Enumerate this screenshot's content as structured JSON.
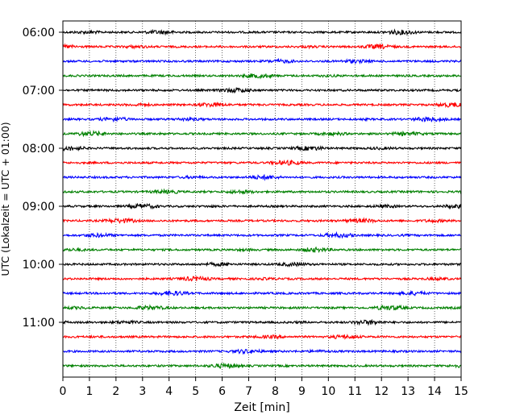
{
  "chart_data": {
    "type": "line",
    "subtype": "helicorder",
    "xlabel": "Zeit  [min]",
    "ylabel": "UTC (Lokalzeit = UTC + 01:00)",
    "xlim": [
      0,
      15
    ],
    "x_ticks": [
      0,
      1,
      2,
      3,
      4,
      5,
      6,
      7,
      8,
      9,
      10,
      11,
      12,
      13,
      14,
      15
    ],
    "x_tick_labels": [
      "0",
      "1",
      "2",
      "3",
      "4",
      "5",
      "6",
      "7",
      "8",
      "9",
      "10",
      "11",
      "12",
      "13",
      "14",
      "15"
    ],
    "y_tick_labels": [
      "06:00",
      "07:00",
      "08:00",
      "09:00",
      "10:00",
      "11:00"
    ],
    "y_tick_rows": [
      0,
      4,
      8,
      12,
      16,
      20
    ],
    "vertical_grid": "dotted",
    "trace_colors": [
      "#000000",
      "#ff0000",
      "#0000ff",
      "#008000"
    ],
    "trace_start_times": [
      "06:00",
      "06:15",
      "06:30",
      "06:45",
      "07:00",
      "07:15",
      "07:30",
      "07:45",
      "08:00",
      "08:15",
      "08:30",
      "08:45",
      "09:00",
      "09:15",
      "09:30",
      "09:45",
      "10:00",
      "10:15",
      "10:30",
      "10:45",
      "11:00",
      "11:15",
      "11:30",
      "11:45"
    ]
  }
}
